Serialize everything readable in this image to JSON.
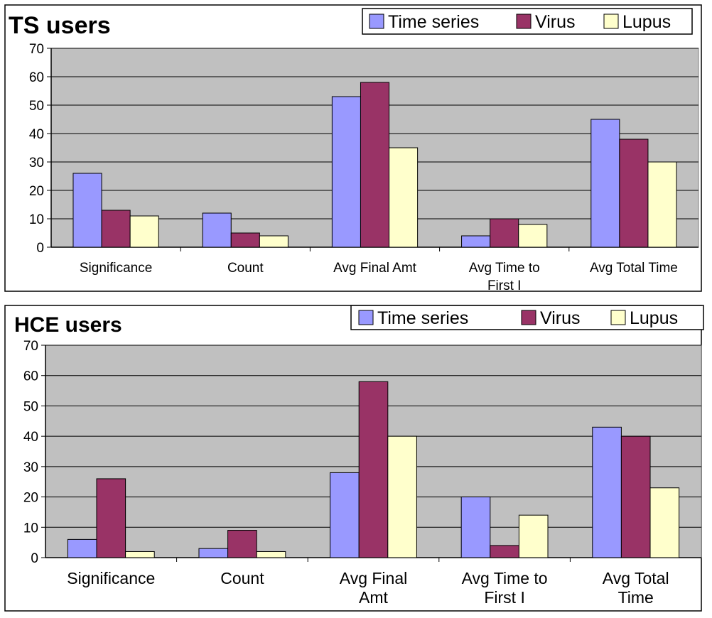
{
  "colors": {
    "plot_bg": "#c0c0c0",
    "series": [
      "#9999ff",
      "#993366",
      "#ffffcc"
    ],
    "grid": "#000000"
  },
  "chart_data": [
    {
      "type": "bar",
      "title": "TS users",
      "categories": [
        [
          "Significance"
        ],
        [
          "Count"
        ],
        [
          "Avg Final Amt"
        ],
        [
          "Avg Time to",
          "First I"
        ],
        [
          "Avg Total Time"
        ]
      ],
      "series": [
        {
          "name": "Time series",
          "values": [
            26,
            12,
            53,
            4,
            45
          ]
        },
        {
          "name": "Virus",
          "values": [
            13,
            5,
            58,
            10,
            38
          ]
        },
        {
          "name": "Lupus",
          "values": [
            11,
            4,
            35,
            8,
            30
          ]
        }
      ],
      "yticks": [
        "0",
        "10",
        "20",
        "30",
        "40",
        "50",
        "60",
        "70"
      ],
      "ylim": [
        0,
        70
      ],
      "grid": true,
      "legend": "top-right"
    },
    {
      "type": "bar",
      "title": "HCE users",
      "categories": [
        [
          "Significance"
        ],
        [
          "Count"
        ],
        [
          "Avg Final",
          "Amt"
        ],
        [
          "Avg Time to",
          "First I"
        ],
        [
          "Avg Total",
          "Time"
        ]
      ],
      "series": [
        {
          "name": "Time series",
          "values": [
            6,
            3,
            28,
            20,
            43
          ]
        },
        {
          "name": "Virus",
          "values": [
            26,
            9,
            58,
            4,
            40
          ]
        },
        {
          "name": "Lupus",
          "values": [
            2,
            2,
            40,
            14,
            23
          ]
        }
      ],
      "yticks": [
        "0",
        "10",
        "20",
        "30",
        "40",
        "50",
        "60",
        "70"
      ],
      "ylim": [
        0,
        70
      ],
      "grid": true,
      "legend": "top-right"
    }
  ]
}
